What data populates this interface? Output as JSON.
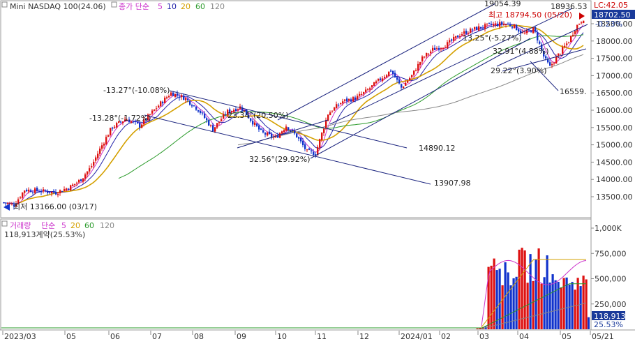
{
  "chart_data": [
    {
      "type": "candlestick",
      "panel": "price",
      "instrument_label": "Mini NASDAQ 100(24.06)",
      "ma_label": "종가 단순",
      "ma_periods": [
        "5",
        "10",
        "20",
        "60",
        "120"
      ],
      "ma_colors": [
        "#cc33cc",
        "#2222aa",
        "#d4a000",
        "#2a9a2a",
        "#888888"
      ],
      "y_ticks": [
        "13500.00",
        "14000.00",
        "14500.00",
        "15000.00",
        "15500.00",
        "16000.00",
        "16500.00",
        "17000.00",
        "17500.00",
        "18000.00",
        "18500.00"
      ],
      "ylim": [
        13060,
        19180
      ],
      "current_price": "18702.50",
      "current_change": "-0.23%",
      "lc_label": "LC:42.05",
      "x_ticks": [
        "2023/03",
        "05",
        "06",
        "07",
        "08",
        "09",
        "10",
        "11",
        "12",
        "2024/01",
        "02",
        "03",
        "04",
        "05",
        "05/21"
      ],
      "annotations": {
        "low": "최저 13166.00 (03/17)",
        "high": "최고 18794.50 (05/20)",
        "chan_a_start": "-13.27°(-10.08%)",
        "chan_a_mid": "-13.28°(-1.72%)",
        "chan_b_upper": "23.34°(20.50%)",
        "chan_a_end_upper": "14890.12",
        "chan_a_end_lower": "13907.98",
        "chan_b_low": "32.56°(29.92%)",
        "chan_b_top": "19054.39",
        "chan_b_inner": "13.25°(-5.27%)",
        "chan_c_upper": "32.91°(4.88%)",
        "chan_c_lower": "29.22°(3.90%)",
        "chan_c_top": "18936.53",
        "chan_c_end": "16559."
      }
    },
    {
      "type": "bar",
      "panel": "volume",
      "title": "거래량",
      "ma_label": "단순",
      "ma_periods": [
        "5",
        "20",
        "60",
        "120"
      ],
      "ma_colors": [
        "#cc33cc",
        "#d4a000",
        "#2a9a2a",
        "#888888"
      ],
      "last_volume_label": "118,913계약(25.53%)",
      "y_ticks": [
        "250,000",
        "500,000",
        "750,000",
        "1,000K"
      ],
      "ylim": [
        0,
        1110000
      ],
      "current_volume": "118,913",
      "current_volume_pct": "25.53%",
      "month_x": [
        "2024/04",
        "2024/05"
      ]
    }
  ]
}
